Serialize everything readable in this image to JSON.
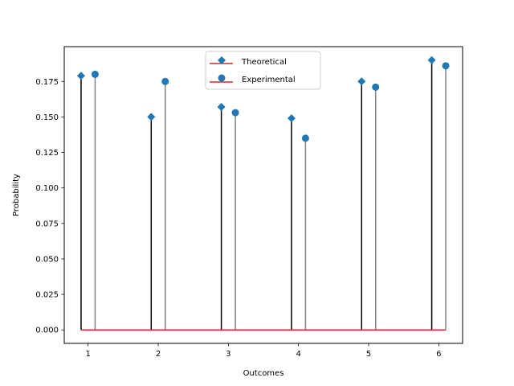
{
  "chart_data": {
    "type": "stem",
    "title": "",
    "xlabel": "Outcomes",
    "ylabel": "Probability",
    "xlim": [
      0.66,
      6.34
    ],
    "ylim": [
      -0.0095,
      0.1995
    ],
    "xticks": [
      1,
      2,
      3,
      4,
      5,
      6
    ],
    "yticks": [
      0.0,
      0.025,
      0.05,
      0.075,
      0.1,
      0.125,
      0.15,
      0.175
    ],
    "ytick_labels": [
      "0.000",
      "0.025",
      "0.050",
      "0.075",
      "0.100",
      "0.125",
      "0.150",
      "0.175"
    ],
    "grid": false,
    "legend_position": "top-center",
    "baseline": 0,
    "baseline_color": "#d62728",
    "marker_color": "#1f77b4",
    "series": [
      {
        "name": "Theoretical",
        "marker": "diamond",
        "stem_color": "#000000",
        "x": [
          0.9,
          1.9,
          2.9,
          3.9,
          4.9,
          5.9
        ],
        "values": [
          0.179,
          0.15,
          0.157,
          0.149,
          0.175,
          0.19
        ]
      },
      {
        "name": "Experimental",
        "marker": "circle",
        "stem_color": "#808080",
        "x": [
          1.1,
          2.1,
          3.1,
          4.1,
          5.1,
          6.1
        ],
        "values": [
          0.18,
          0.175,
          0.153,
          0.135,
          0.171,
          0.186
        ]
      }
    ]
  }
}
